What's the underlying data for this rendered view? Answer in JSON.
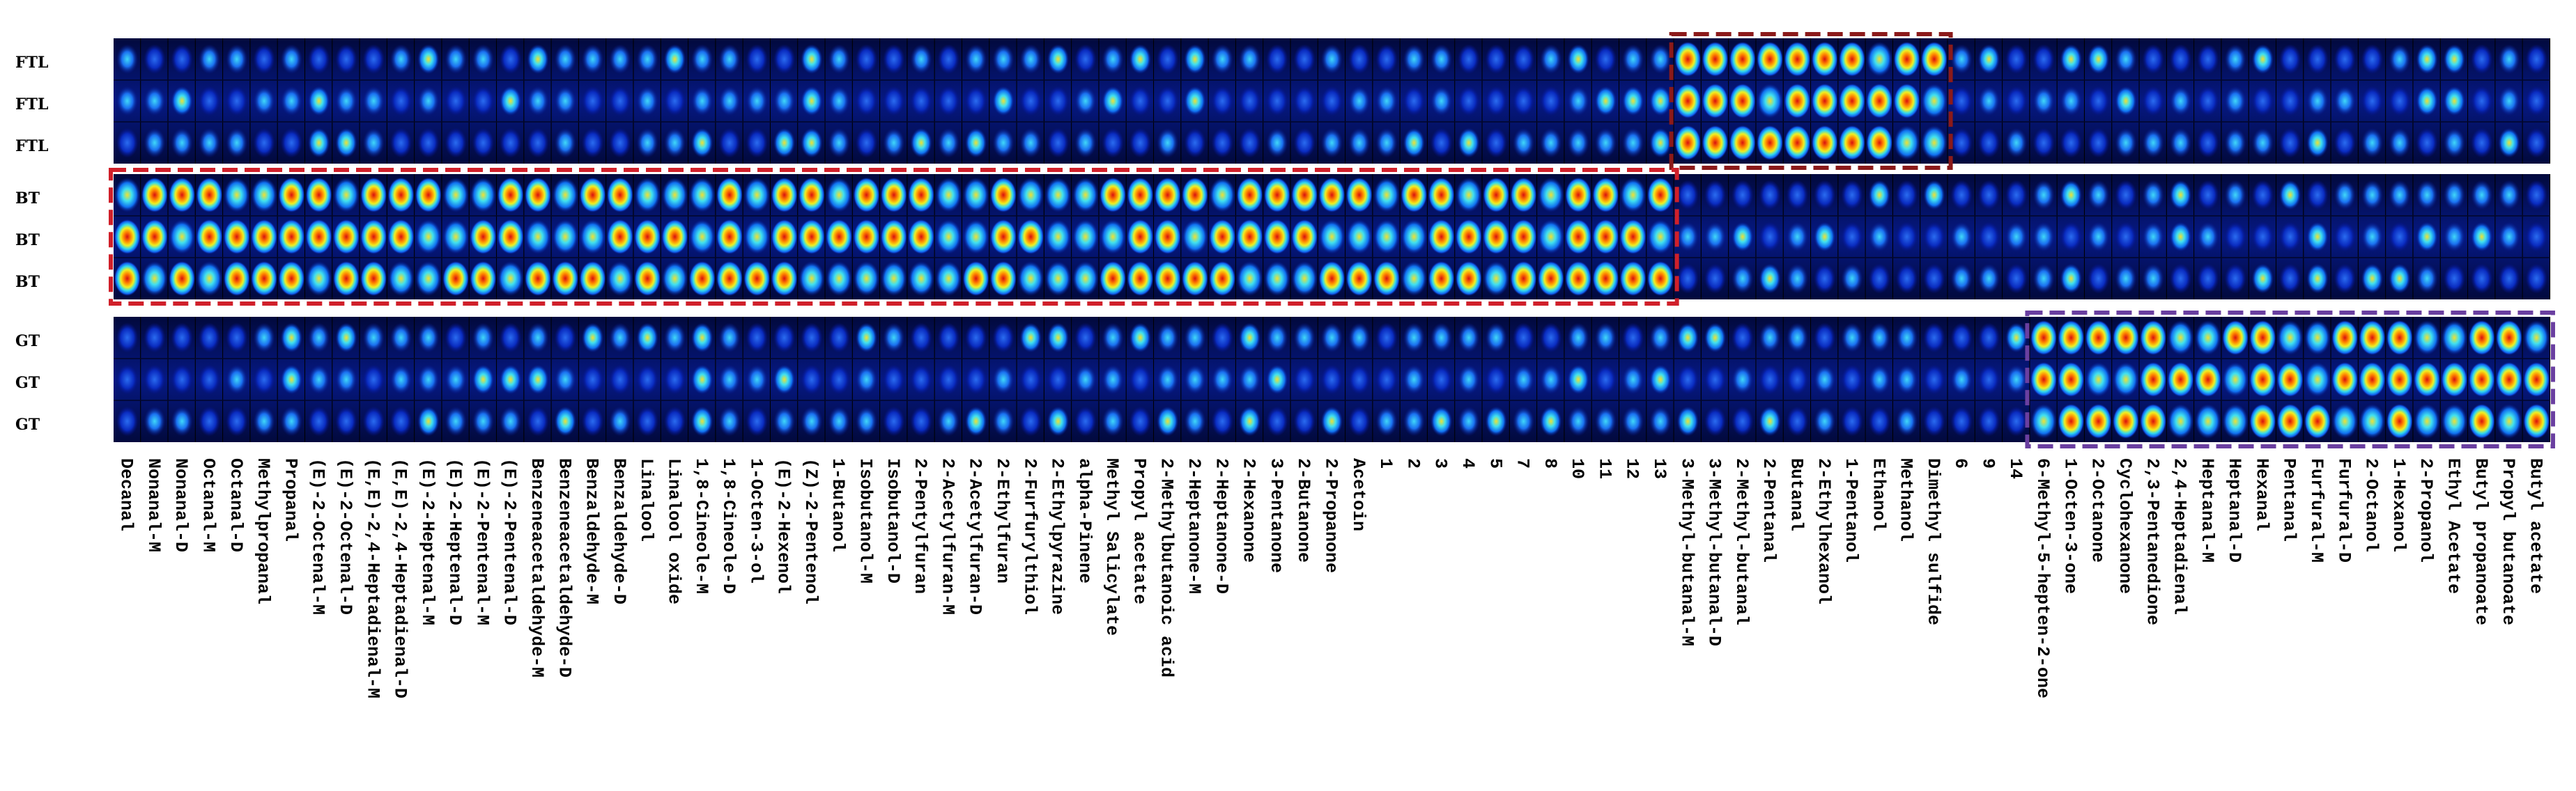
{
  "chart_data": {
    "type": "heatmap",
    "title": "",
    "row_labels": [
      "FTL",
      "FTL",
      "FTL",
      "BT",
      "BT",
      "BT",
      "GT",
      "GT",
      "GT"
    ],
    "groups": [
      {
        "name": "FTL",
        "rows": [
          0,
          1,
          2
        ]
      },
      {
        "name": "BT",
        "rows": [
          3,
          4,
          5
        ]
      },
      {
        "name": "GT",
        "rows": [
          6,
          7,
          8
        ]
      }
    ],
    "compounds": [
      "Decanal",
      "Nonanal-M",
      "Nonanal-D",
      "Octanal-M",
      "Octanal-D",
      "Methylpropanal",
      "Propanal",
      "(E)-2-Octenal-M",
      "(E)-2-Octenal-D",
      "(E,E)-2,4-Heptadienal-M",
      "(E,E)-2,4-Heptadienal-D",
      "(E)-2-Heptenal-M",
      "(E)-2-Heptenal-D",
      "(E)-2-Pentenal-M",
      "(E)-2-Pentenal-D",
      "Benzeneacetaldehyde-M",
      "Benzeneacetaldehyde-D",
      "Benzaldehyde-M",
      "Benzaldehyde-D",
      "Linalool",
      "Linalool oxide",
      "1,8-Cineole-M",
      "1,8-Cineole-D",
      "1-Octen-3-ol",
      "(E)-2-Hexenol",
      "(Z)-2-Pentenol",
      "1-Butanol",
      "Isobutanol-M",
      "Isobutanol-D",
      "2-Pentylfuran",
      "2-Acetylfuran-M",
      "2-Acetylfuran-D",
      "2-Ethylfuran",
      "2-Furfurylthiol",
      "2-Ethylpyrazine",
      "alpha-Pinene",
      "Methyl Salicylate",
      "Propyl acetate",
      "2-Methylbutanoic acid",
      "2-Heptanone-M",
      "2-Heptanone-D",
      "2-Hexanone",
      "3-Pentanone",
      "2-Butanone",
      "2-Propanone",
      "Acetoin",
      "1",
      "2",
      "3",
      "4",
      "5",
      "7",
      "8",
      "10",
      "11",
      "12",
      "13",
      "3-Methyl-butanal-M",
      "3-Methyl-butanal-D",
      "2-Methyl-butanal",
      "2-Pentanal",
      "Butanal",
      "2-Ethylhexanol",
      "1-Pentanol",
      "Ethanol",
      "Methanol",
      "Dimethyl sulfide",
      "6",
      "9",
      "14",
      "6-Methyl-5-hepten-2-one",
      "1-Octen-3-one",
      "2-Octanone",
      "Cyclohexanone",
      "2,3-Pentanedione",
      "2,4-Heptadienal",
      "Heptanal-M",
      "Heptanal-D",
      "Hexanal",
      "Pentanal",
      "Furfural-M",
      "Furfural-D",
      "2-Octanol",
      "1-Hexanol",
      "2-Propanol",
      "Ethyl Acetate",
      "Butyl propanoate",
      "Propyl butanoate",
      "Butyl acetate"
    ],
    "highlights": [
      {
        "group": "FTL",
        "from": "3-Methyl-butanal-M",
        "to": "Dimethyl sulfide",
        "color": "#8b1a1a"
      },
      {
        "group": "BT",
        "from": "Decanal",
        "to": "13",
        "color": "#d0202a"
      },
      {
        "group": "GT",
        "from": "6-Methyl-5-hepten-2-one",
        "to": "Butyl acetate",
        "color": "#6a3fa0"
      }
    ],
    "colormap": "jet",
    "xlabel": "",
    "ylabel": ""
  }
}
